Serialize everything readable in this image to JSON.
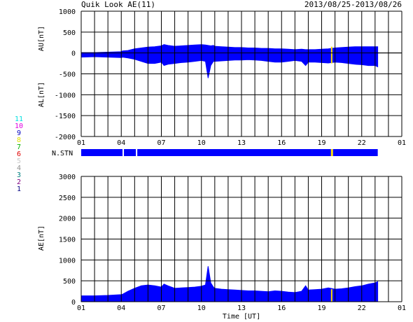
{
  "header": {
    "title": "Quik Look AE(11)",
    "date_range": "2013/08/25-2013/08/26"
  },
  "station_count_labels": [
    {
      "text": "11",
      "color": "#00e0e0"
    },
    {
      "text": "10",
      "color": "#e000e0"
    },
    {
      "text": "9",
      "color": "#0000c0"
    },
    {
      "text": "8",
      "color": "#e0e000"
    },
    {
      "text": "7",
      "color": "#00b000"
    },
    {
      "text": "6",
      "color": "#e00000"
    },
    {
      "text": "5",
      "color": "#c8c8c8"
    },
    {
      "text": "4",
      "color": "#909090"
    },
    {
      "text": "3",
      "color": "#008080"
    },
    {
      "text": "2",
      "color": "#800080"
    },
    {
      "text": "1",
      "color": "#000080"
    }
  ],
  "nstn_label": "N.STN",
  "colors": {
    "data_fill": "#0000ff",
    "marker": "#ffe000",
    "grid": "#000000"
  },
  "chart_data": [
    {
      "type": "area",
      "name": "AU/AL",
      "ylabel_upper": "AU[nT]",
      "ylabel_lower": "AL[nT]",
      "ylim": [
        -2000,
        1000
      ],
      "yticks": [
        "1000",
        "500",
        "0",
        "-500",
        "-1000",
        "-1500",
        "-2000"
      ],
      "xlim": [
        0,
        24
      ],
      "xtick_labels": [
        "01",
        "04",
        "07",
        "10",
        "13",
        "16",
        "19",
        "22",
        "01"
      ],
      "grid": true,
      "data_end_hour": 22.2,
      "x_hours": [
        0,
        1,
        2,
        3,
        3.1,
        3.5,
        4,
        4.5,
        5,
        5.5,
        6,
        6.2,
        6.5,
        7,
        7.5,
        8,
        8.5,
        9,
        9.3,
        9.5,
        9.7,
        9.9,
        10,
        10.5,
        11,
        11.5,
        12,
        12.5,
        13,
        13.5,
        14,
        14.5,
        15,
        15.5,
        16,
        16.5,
        16.8,
        17,
        17.5,
        18,
        18.5,
        19,
        19.5,
        20,
        20.5,
        21,
        21.5,
        22,
        22.2
      ],
      "au": [
        10,
        10,
        20,
        30,
        50,
        60,
        100,
        120,
        140,
        150,
        170,
        200,
        180,
        160,
        170,
        180,
        190,
        200,
        190,
        180,
        170,
        180,
        160,
        150,
        140,
        130,
        130,
        120,
        120,
        110,
        110,
        100,
        100,
        90,
        80,
        90,
        80,
        80,
        80,
        90,
        100,
        120,
        130,
        140,
        150,
        150,
        150,
        150,
        150
      ],
      "al": [
        -100,
        -90,
        -100,
        -110,
        -100,
        -120,
        -150,
        -200,
        -250,
        -250,
        -220,
        -300,
        -270,
        -250,
        -230,
        -220,
        -200,
        -180,
        -200,
        -600,
        -300,
        -200,
        -200,
        -190,
        -180,
        -170,
        -170,
        -160,
        -170,
        -180,
        -200,
        -220,
        -220,
        -200,
        -180,
        -200,
        -300,
        -220,
        -220,
        -230,
        -240,
        -220,
        -230,
        -250,
        -270,
        -280,
        -300,
        -300,
        -330
      ]
    },
    {
      "type": "bar",
      "name": "N.STN",
      "xlim": [
        0,
        24
      ],
      "xtick_labels": [
        "01",
        "04",
        "07",
        "10",
        "13",
        "16",
        "19",
        "22",
        "01"
      ],
      "segments": [
        {
          "start": 0,
          "end": 3.1,
          "value": 9
        },
        {
          "start": 3.1,
          "end": 3.2,
          "value": 7
        },
        {
          "start": 3.2,
          "end": 4.1,
          "value": 9
        },
        {
          "start": 4.1,
          "end": 4.2,
          "value": 7
        },
        {
          "start": 4.2,
          "end": 18.7,
          "value": 9
        },
        {
          "start": 18.7,
          "end": 18.85,
          "value": 8
        },
        {
          "start": 18.85,
          "end": 22.2,
          "value": 9
        }
      ]
    },
    {
      "type": "area",
      "name": "AE",
      "ylabel": "AE[nT]",
      "ylim": [
        0,
        3000
      ],
      "yticks": [
        "3000",
        "2500",
        "2000",
        "1500",
        "1000",
        "500",
        "0"
      ],
      "xlim": [
        0,
        24
      ],
      "xtick_labels": [
        "01",
        "04",
        "07",
        "10",
        "13",
        "16",
        "19",
        "22",
        "01"
      ],
      "xlabel": "Time [UT]",
      "grid": true,
      "data_end_hour": 22.2,
      "x_hours": [
        0,
        1,
        2,
        3,
        3.1,
        3.5,
        4,
        4.5,
        5,
        5.5,
        6,
        6.2,
        6.5,
        7,
        7.5,
        8,
        8.5,
        9,
        9.3,
        9.5,
        9.7,
        9.9,
        10,
        10.5,
        11,
        11.5,
        12,
        12.5,
        13,
        13.5,
        14,
        14.5,
        15,
        15.5,
        16,
        16.5,
        16.8,
        17,
        17.5,
        18,
        18.5,
        19,
        19.5,
        20,
        20.5,
        21,
        21.5,
        22,
        22.2
      ],
      "ae": [
        140,
        140,
        150,
        170,
        180,
        250,
        320,
        380,
        400,
        380,
        350,
        420,
        380,
        320,
        330,
        340,
        350,
        370,
        400,
        850,
        450,
        350,
        320,
        300,
        290,
        280,
        270,
        260,
        260,
        250,
        240,
        260,
        250,
        230,
        220,
        250,
        380,
        280,
        290,
        300,
        330,
        300,
        310,
        330,
        360,
        380,
        420,
        450,
        480
      ]
    }
  ]
}
